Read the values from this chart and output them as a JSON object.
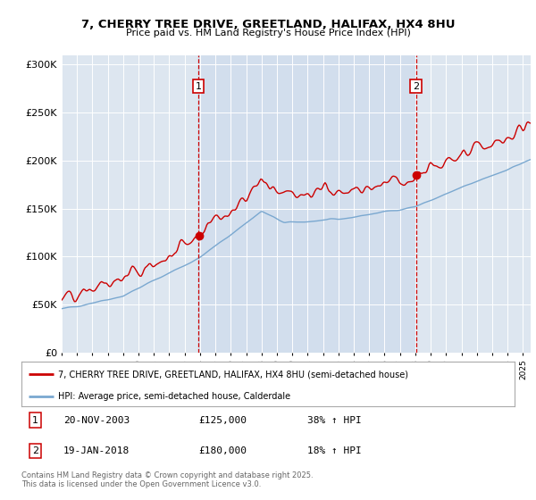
{
  "title": "7, CHERRY TREE DRIVE, GREETLAND, HALIFAX, HX4 8HU",
  "subtitle": "Price paid vs. HM Land Registry's House Price Index (HPI)",
  "bg_color": "#dde6f0",
  "shade_color": "#ccd9ec",
  "red_color": "#cc0000",
  "blue_color": "#7aa8d0",
  "sale1_date": 2003.9,
  "sale1_price": 125000,
  "sale2_date": 2018.05,
  "sale2_price": 180000,
  "legend_red": "7, CHERRY TREE DRIVE, GREETLAND, HALIFAX, HX4 8HU (semi-detached house)",
  "legend_blue": "HPI: Average price, semi-detached house, Calderdale",
  "footer": "Contains HM Land Registry data © Crown copyright and database right 2025.\nThis data is licensed under the Open Government Licence v3.0.",
  "ylim_max": 310000,
  "ylim_min": 0,
  "xmin": 1995,
  "xmax": 2025.5
}
